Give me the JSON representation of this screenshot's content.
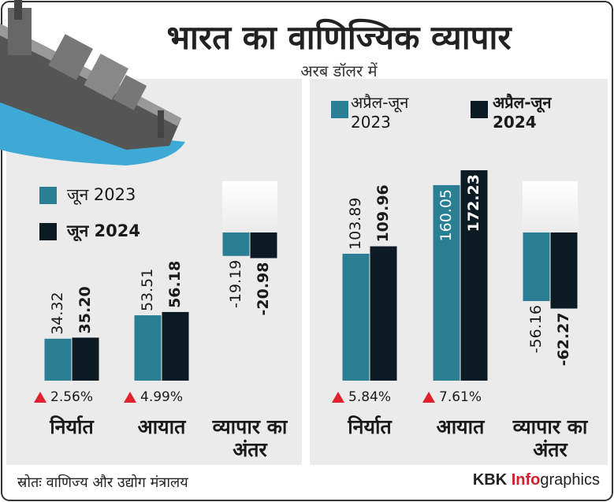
{
  "title": "भारत का वाणिज्यिक व्यापार",
  "subtitle": "अरब डॉलर में",
  "chart_data": [
    {
      "type": "bar",
      "categories": [
        "निर्यात",
        "आयात",
        "व्यापार का अंतर"
      ],
      "series": [
        {
          "name": "जून 2023",
          "color": "#2b7f95",
          "values": [
            34.32,
            53.51,
            -19.19
          ]
        },
        {
          "name": "जून 2024",
          "color": "#0c1a24",
          "values": [
            35.2,
            56.18,
            -20.98
          ],
          "value_labels": [
            "35.20",
            "56.18",
            "-20.98"
          ]
        }
      ],
      "annotations": [
        "2.56%",
        "4.99%"
      ]
    },
    {
      "type": "bar",
      "categories": [
        "निर्यात",
        "आयात",
        "व्यापार का अंतर"
      ],
      "series": [
        {
          "name": "अप्रैल-जून 2023",
          "color": "#2b7f95",
          "values": [
            103.89,
            160.05,
            -56.16
          ]
        },
        {
          "name": "अप्रैल-जून 2024",
          "color": "#0c1a24",
          "values": [
            109.96,
            172.23,
            -62.27
          ]
        }
      ],
      "annotations": [
        "5.84%",
        "7.61%"
      ]
    }
  ],
  "source": "स्रोतः वाणिज्य और उद्योग मंत्रालय",
  "credit": {
    "brand": "KBK",
    "highlight": "Info",
    "rest": "graphics"
  }
}
